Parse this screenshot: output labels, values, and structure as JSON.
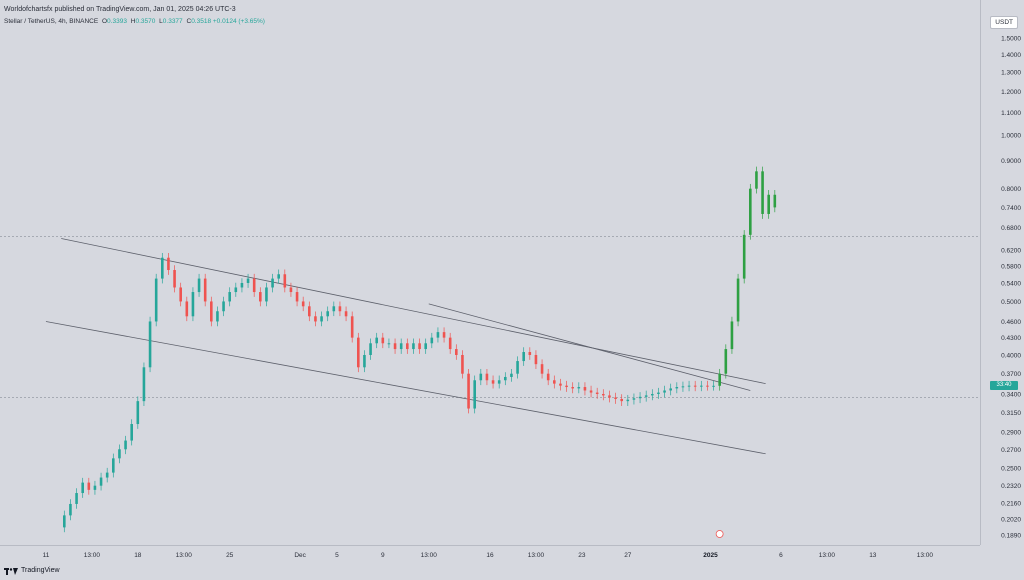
{
  "header": {
    "published": "Worldofchartsfx published on TradingView.com, Jan 01, 2025 04:26 UTC-3",
    "symbol": "Stellar / TetherUS, 4h, BINANCE",
    "ohlc": {
      "o_label": "O",
      "o": "0.3393",
      "h_label": "H",
      "h": "0.3570",
      "l_label": "L",
      "l": "0.3377",
      "c_label": "C",
      "c": "0.3518",
      "change": "+0.0124 (+3.65%)"
    }
  },
  "currency": "USDT",
  "last_price_label": "33:40",
  "footer": {
    "brand": "TradingView"
  },
  "colors": {
    "up": "#26a69a",
    "down": "#ef5350",
    "projection": "#2ea043",
    "trendline": "#5d606b",
    "background": "#d6d8df"
  },
  "chart_data": {
    "type": "line",
    "title": "",
    "price_axis_ticks": [
      "1.5000",
      "1.4000",
      "1.3000",
      "1.2000",
      "1.1000",
      "1.0000",
      "0.9000",
      "0.8000",
      "0.7400",
      "0.6800",
      "0.6200",
      "0.5800",
      "0.5400",
      "0.5000",
      "0.4600",
      "0.4300",
      "0.4000",
      "0.3700",
      "0.3400",
      "0.3150",
      "0.2900",
      "0.2700",
      "0.2500",
      "0.2320",
      "0.2160",
      "0.2020",
      "0.1890"
    ],
    "time_axis_ticks": [
      "11",
      "13:00",
      "18",
      "13:00",
      "25",
      "Dec",
      "5",
      "9",
      "13:00",
      "16",
      "13:00",
      "23",
      "27",
      "2025",
      "6",
      "13:00",
      "13",
      "13:00"
    ],
    "y_scale": "log",
    "ylim": [
      0.185,
      1.55
    ],
    "series": [
      {
        "role": "historical",
        "x": [
          0,
          2,
          4,
          6,
          8,
          10,
          12,
          14,
          16,
          18,
          20,
          22,
          24,
          26,
          28,
          30,
          32,
          34,
          36,
          38,
          40,
          42,
          44,
          46,
          48,
          50,
          52,
          54,
          56,
          58,
          60,
          62,
          64,
          66,
          68,
          70,
          72,
          74,
          76,
          78,
          80,
          82,
          84,
          86,
          88,
          90,
          92,
          94,
          96,
          98,
          100,
          102,
          104,
          106,
          108,
          110,
          112,
          114,
          116,
          118,
          120,
          122,
          124,
          126,
          128,
          130,
          132,
          134,
          136,
          138,
          140,
          142,
          144,
          146,
          148,
          150,
          152,
          154,
          156,
          158,
          160,
          162,
          164,
          166,
          168,
          170,
          172,
          174,
          176,
          178,
          180,
          182,
          184,
          186,
          188,
          190,
          192,
          194,
          196,
          198,
          200,
          202,
          204,
          206,
          208,
          210,
          212,
          214
        ],
        "y": [
          0.195,
          0.205,
          0.215,
          0.225,
          0.235,
          0.228,
          0.232,
          0.24,
          0.245,
          0.26,
          0.27,
          0.28,
          0.3,
          0.33,
          0.38,
          0.46,
          0.55,
          0.6,
          0.57,
          0.53,
          0.5,
          0.47,
          0.52,
          0.55,
          0.5,
          0.46,
          0.48,
          0.5,
          0.52,
          0.53,
          0.54,
          0.55,
          0.52,
          0.5,
          0.53,
          0.55,
          0.56,
          0.53,
          0.52,
          0.5,
          0.49,
          0.47,
          0.46,
          0.47,
          0.48,
          0.49,
          0.48,
          0.47,
          0.43,
          0.38,
          0.4,
          0.42,
          0.43,
          0.42,
          0.42,
          0.41,
          0.42,
          0.41,
          0.42,
          0.41,
          0.42,
          0.43,
          0.44,
          0.43,
          0.41,
          0.4,
          0.37,
          0.32,
          0.36,
          0.37,
          0.36,
          0.355,
          0.36,
          0.365,
          0.37,
          0.39,
          0.405,
          0.4,
          0.385,
          0.37,
          0.36,
          0.355,
          0.352,
          0.35,
          0.348,
          0.35,
          0.345,
          0.342,
          0.34,
          0.338,
          0.335,
          0.333,
          0.33,
          0.332,
          0.334,
          0.336,
          0.338,
          0.34,
          0.342,
          0.345,
          0.348,
          0.35,
          0.351,
          0.352,
          0.351,
          0.352,
          0.3518,
          0.3518
        ]
      },
      {
        "role": "projection",
        "x": [
          214,
          216,
          218,
          220,
          222,
          224,
          226,
          228,
          230,
          232,
          234
        ],
        "y": [
          0.3518,
          0.37,
          0.41,
          0.46,
          0.55,
          0.66,
          0.8,
          0.86,
          0.72,
          0.78,
          0.74
        ]
      }
    ],
    "channel_lines": [
      {
        "from": [
          0,
          0.65
        ],
        "to": [
          230,
          0.355
        ]
      },
      {
        "from": [
          -5,
          0.46
        ],
        "to": [
          230,
          0.265
        ]
      },
      {
        "from": [
          120,
          0.495
        ],
        "to": [
          225,
          0.345
        ]
      }
    ],
    "horizontal_levels": [
      0.655,
      0.335
    ]
  }
}
